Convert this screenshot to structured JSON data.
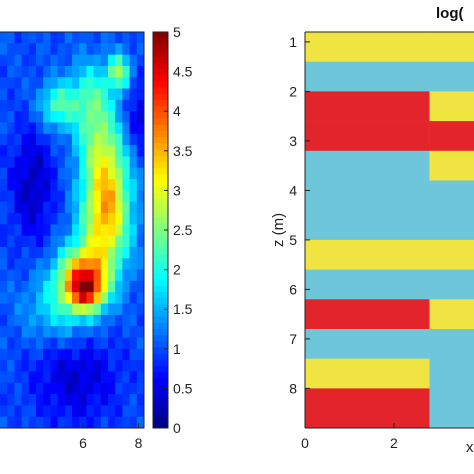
{
  "chart_data": [
    {
      "type": "heatmap",
      "colormap": "jet",
      "x_ticks": [
        "6",
        "8"
      ],
      "x_tick_values": [
        6,
        8
      ],
      "xlim": [
        3,
        8.2
      ],
      "colorbar": {
        "ticks": [
          "0",
          "0.5",
          "1",
          "1.5",
          "2",
          "2.5",
          "3",
          "3.5",
          "4",
          "4.5",
          "5"
        ],
        "range": [
          0,
          5
        ]
      },
      "grid": {
        "rows": 35,
        "cols": 20,
        "background": 1.0,
        "blobs": [
          {
            "r": 6,
            "c": 7.5,
            "rr": 2.0,
            "rc": 2.5,
            "v": 1.2
          },
          {
            "r": 3,
            "c": 16,
            "rr": 1.5,
            "rc": 1.5,
            "v": 1.6
          },
          {
            "r": 5,
            "c": 12,
            "rr": 3.0,
            "rc": 3.0,
            "v": 0.9
          },
          {
            "r": 9,
            "c": 13,
            "rr": 4.0,
            "rc": 3.0,
            "v": 1.0
          },
          {
            "r": 13,
            "c": 14.5,
            "rr": 4.5,
            "rc": 3.0,
            "v": 1.6
          },
          {
            "r": 17,
            "c": 14,
            "rr": 4.0,
            "rc": 3.5,
            "v": 1.6
          },
          {
            "r": 21,
            "c": 11,
            "rr": 2.5,
            "rc": 3.5,
            "v": 2.4
          },
          {
            "r": 22.5,
            "c": 11.5,
            "rr": 1.6,
            "rc": 2.5,
            "v": 1.8
          },
          {
            "r": 24,
            "c": 8,
            "rr": 3.0,
            "rc": 5.0,
            "v": 0.8
          },
          {
            "r": 30,
            "c": 10,
            "rr": 4.0,
            "rc": 6.0,
            "v": -0.6
          },
          {
            "r": 13,
            "c": 4,
            "rr": 5.0,
            "rc": 3.0,
            "v": -0.7
          },
          {
            "r": 7,
            "c": 19,
            "rr": 3.0,
            "rc": 2.0,
            "v": -0.6
          }
        ]
      }
    },
    {
      "type": "heatmap",
      "title": "log(",
      "ylabel": "z (m)",
      "xlabel": "x",
      "y_ticks": [
        "1",
        "2",
        "3",
        "4",
        "5",
        "6",
        "7",
        "8"
      ],
      "y_tick_values": [
        1,
        2,
        3,
        4,
        5,
        6,
        7,
        8
      ],
      "x_ticks": [
        "0",
        "2"
      ],
      "x_tick_values": [
        0,
        2
      ],
      "xlim": [
        0,
        3.8
      ],
      "ylim": [
        0.8,
        8.8
      ],
      "colors": {
        "yellow": "#f0e442",
        "cyan": "#6ec6da",
        "red": "#e3242b"
      },
      "bands": [
        {
          "z0": 0.8,
          "z1": 1.4,
          "left": "yellow",
          "right": "yellow"
        },
        {
          "z0": 1.4,
          "z1": 2.0,
          "left": "cyan",
          "right": "cyan"
        },
        {
          "z0": 2.0,
          "z1": 2.6,
          "left": "red",
          "right": "yellow"
        },
        {
          "z0": 2.6,
          "z1": 3.2,
          "left": "red",
          "right": "red"
        },
        {
          "z0": 3.2,
          "z1": 3.8,
          "left": "cyan",
          "right": "yellow"
        },
        {
          "z0": 3.8,
          "z1": 5.0,
          "left": "cyan",
          "right": "cyan"
        },
        {
          "z0": 5.0,
          "z1": 5.6,
          "left": "yellow",
          "right": "yellow"
        },
        {
          "z0": 5.6,
          "z1": 6.2,
          "left": "cyan",
          "right": "cyan"
        },
        {
          "z0": 6.2,
          "z1": 6.8,
          "left": "red",
          "right": "yellow"
        },
        {
          "z0": 6.8,
          "z1": 7.4,
          "left": "cyan",
          "right": "cyan"
        },
        {
          "z0": 7.4,
          "z1": 8.0,
          "left": "yellow",
          "right": "cyan"
        },
        {
          "z0": 8.0,
          "z1": 8.8,
          "left": "red",
          "right": "cyan"
        }
      ],
      "split_x": 2.8
    }
  ]
}
